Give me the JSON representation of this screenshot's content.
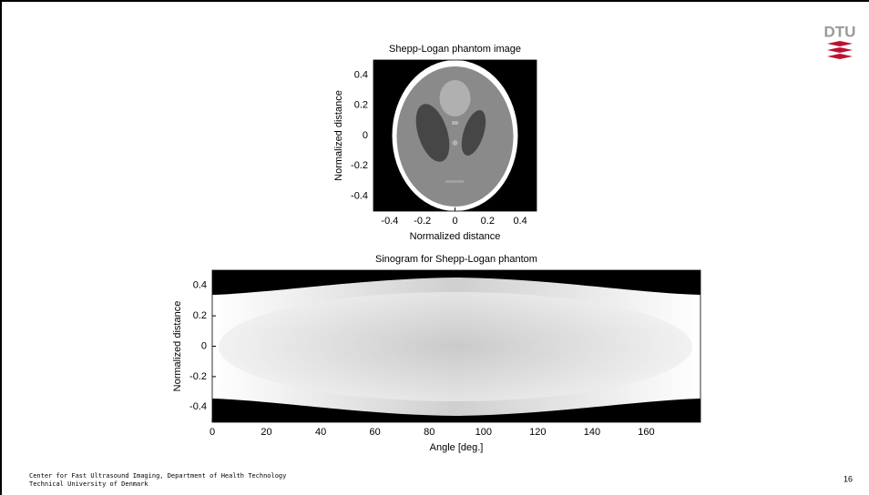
{
  "logo": "DTU",
  "chart_data": [
    {
      "type": "image",
      "title": "Shepp-Logan phantom image",
      "x_label": "Normalized distance",
      "y_label": "Normalized distance",
      "xlim": [
        -0.5,
        0.5
      ],
      "ylim": [
        -0.5,
        0.5
      ],
      "xticks": [
        -0.4,
        -0.2,
        0,
        0.2,
        0.4
      ],
      "yticks": [
        -0.4,
        -0.2,
        0,
        0.2,
        0.4
      ]
    },
    {
      "type": "image",
      "title": "Sinogram for Shepp-Logan phantom",
      "x_label": "Angle [deg.]",
      "y_label": "Normalized distance",
      "xlim": [
        0,
        180
      ],
      "ylim": [
        -0.5,
        0.5
      ],
      "xticks": [
        0,
        20,
        40,
        60,
        80,
        100,
        120,
        140,
        160
      ],
      "yticks": [
        -0.4,
        -0.2,
        0,
        0.2,
        0.4
      ]
    }
  ],
  "footer": {
    "lines": [
      "Center for Fast Ultrasound Imaging, Department of Health Technology",
      "Technical University of Denmark"
    ],
    "page": "16"
  }
}
